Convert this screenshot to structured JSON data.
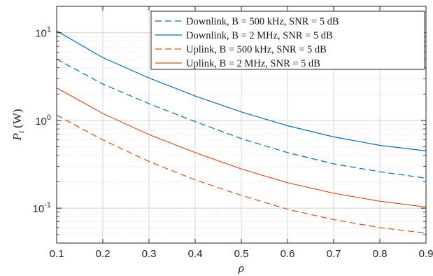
{
  "chart_data": {
    "type": "line",
    "title": "",
    "xlabel": "ρ",
    "ylabel_main": "P",
    "ylabel_sub": "t",
    "ylabel_unit": "(W)",
    "x": [
      0.1,
      0.2,
      0.3,
      0.4,
      0.5,
      0.6,
      0.7,
      0.8,
      0.9
    ],
    "xlim": [
      0.1,
      0.9
    ],
    "ylim": [
      0.04,
      20
    ],
    "yscale": "log",
    "x_ticks": [
      "0.1",
      "0.2",
      "0.3",
      "0.4",
      "0.5",
      "0.6",
      "0.7",
      "0.8",
      "0.9"
    ],
    "y_ticks": [
      {
        "value": 0.1,
        "base": "10",
        "exp": "-1"
      },
      {
        "value": 1,
        "base": "10",
        "exp": "0"
      },
      {
        "value": 10,
        "base": "10",
        "exp": "1"
      }
    ],
    "grid": true,
    "legend_position": "top-right",
    "series": [
      {
        "name": "Downlink, B = 500 kHz, SNR = 5 dB",
        "color": "#0072bd",
        "dash": "dashed",
        "values": [
          5.0,
          2.6,
          1.55,
          0.97,
          0.62,
          0.43,
          0.32,
          0.26,
          0.22
        ]
      },
      {
        "name": "Downlink, B = 2 MHz, SNR = 5 dB",
        "color": "#0072bd",
        "dash": "solid",
        "values": [
          10.5,
          5.2,
          3.05,
          1.9,
          1.25,
          0.87,
          0.65,
          0.52,
          0.45
        ]
      },
      {
        "name": "Uplink, B = 500 kHz, SNR = 5 dB",
        "color": "#d95319",
        "dash": "dashed",
        "values": [
          1.15,
          0.6,
          0.34,
          0.21,
          0.14,
          0.097,
          0.074,
          0.06,
          0.052
        ]
      },
      {
        "name": "Uplink, B = 2 MHz, SNR = 5 dB",
        "color": "#d95319",
        "dash": "solid",
        "values": [
          2.35,
          1.2,
          0.69,
          0.43,
          0.28,
          0.195,
          0.148,
          0.12,
          0.103
        ]
      }
    ]
  }
}
